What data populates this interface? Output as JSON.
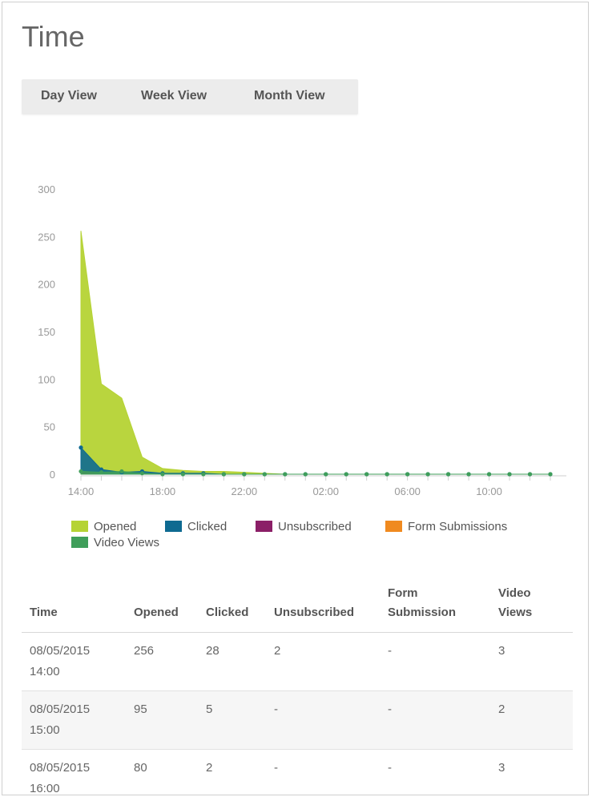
{
  "title": "Time",
  "tabs": [
    "Day View",
    "Week View",
    "Month View"
  ],
  "colors": {
    "opened": "#b5d334",
    "clicked": "#0e6a91",
    "unsubscribed": "#8b1f67",
    "form": "#f08a1f",
    "video": "#3f9e5a"
  },
  "chart_data": {
    "type": "area",
    "x": [
      "14:00",
      "15:00",
      "16:00",
      "17:00",
      "18:00",
      "19:00",
      "20:00",
      "21:00",
      "22:00",
      "23:00",
      "00:00",
      "01:00",
      "02:00",
      "03:00",
      "04:00",
      "05:00",
      "06:00",
      "07:00",
      "08:00",
      "09:00",
      "10:00",
      "11:00",
      "12:00",
      "13:00"
    ],
    "x_tick_labels": [
      "14:00",
      "18:00",
      "22:00",
      "02:00",
      "06:00",
      "10:00"
    ],
    "ylim": [
      0,
      300
    ],
    "y_ticks": [
      0,
      50,
      100,
      150,
      200,
      250,
      300
    ],
    "series": [
      {
        "name": "Opened",
        "values": [
          256,
          95,
          80,
          18,
          6,
          4,
          3,
          3,
          2,
          1,
          0,
          0,
          0,
          0,
          0,
          0,
          0,
          0,
          0,
          0,
          0,
          0,
          0,
          0
        ]
      },
      {
        "name": "Clicked",
        "values": [
          28,
          5,
          2,
          3,
          1,
          1,
          1,
          0,
          0,
          0,
          0,
          0,
          0,
          0,
          0,
          0,
          0,
          0,
          0,
          0,
          0,
          0,
          0,
          0
        ]
      },
      {
        "name": "Unsubscribed",
        "values": [
          2,
          0,
          0,
          0,
          0,
          0,
          0,
          0,
          0,
          0,
          0,
          0,
          0,
          0,
          0,
          0,
          0,
          0,
          0,
          0,
          0,
          0,
          0,
          0
        ]
      },
      {
        "name": "Form Submissions",
        "values": [
          0,
          0,
          0,
          0,
          0,
          0,
          0,
          0,
          0,
          0,
          0,
          0,
          0,
          0,
          0,
          0,
          0,
          0,
          0,
          0,
          0,
          0,
          0,
          0
        ]
      },
      {
        "name": "Video Views",
        "values": [
          3,
          2,
          3,
          1,
          0,
          0,
          0,
          0,
          0,
          0,
          0,
          0,
          0,
          0,
          0,
          0,
          0,
          0,
          0,
          0,
          0,
          0,
          0,
          0
        ]
      }
    ],
    "legend_position": "bottom"
  },
  "table": {
    "headers": [
      "Time",
      "Opened",
      "Clicked",
      "Unsubscribed",
      "Form Submission",
      "Video Views"
    ],
    "rows": [
      {
        "date": "08/05/2015",
        "time": "14:00",
        "opened": "256",
        "clicked": "28",
        "unsubscribed": "2",
        "form": "-",
        "video": "3"
      },
      {
        "date": "08/05/2015",
        "time": "15:00",
        "opened": "95",
        "clicked": "5",
        "unsubscribed": "-",
        "form": "-",
        "video": "2"
      },
      {
        "date": "08/05/2015",
        "time": "16:00",
        "opened": "80",
        "clicked": "2",
        "unsubscribed": "-",
        "form": "-",
        "video": "3"
      }
    ]
  }
}
